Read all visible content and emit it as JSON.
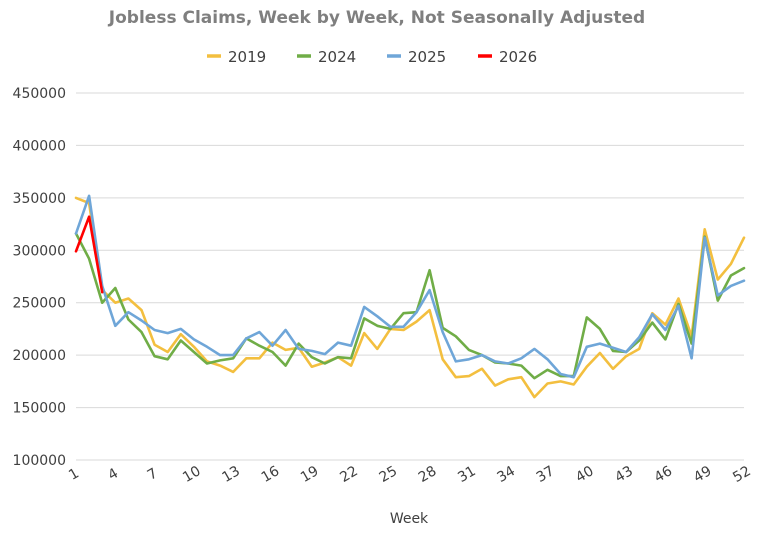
{
  "chart_data": {
    "type": "line",
    "title": "Jobless Claims, Week by Week, Not Seasonally Adjusted",
    "xlabel": "Week",
    "ylabel": "",
    "ylim": [
      100000,
      450000
    ],
    "yticks": [
      100000,
      150000,
      200000,
      250000,
      300000,
      350000,
      400000,
      450000
    ],
    "xlim": [
      1,
      52
    ],
    "xticks": [
      1,
      4,
      7,
      10,
      13,
      16,
      19,
      22,
      25,
      28,
      31,
      34,
      37,
      40,
      43,
      46,
      49,
      52
    ],
    "grid": true,
    "legend_position": "top",
    "series": [
      {
        "name": "2019",
        "color": "#f3bf3f",
        "values": [
          350000,
          345000,
          262000,
          250000,
          254000,
          243000,
          210000,
          203000,
          220000,
          208000,
          194000,
          190000,
          184000,
          197000,
          197000,
          212000,
          205000,
          207000,
          189000,
          193000,
          198000,
          190000,
          221000,
          206000,
          225000,
          224000,
          232000,
          243000,
          196000,
          179000,
          180000,
          187000,
          171000,
          177000,
          179000,
          160000,
          173000,
          175000,
          172000,
          189000,
          202000,
          187000,
          199000,
          206000,
          240000,
          229000,
          254000,
          218000,
          320000,
          272000,
          287000,
          312000
        ]
      },
      {
        "name": "2024",
        "color": "#70ad47",
        "values": [
          316000,
          292000,
          250000,
          264000,
          234000,
          222000,
          199000,
          196000,
          214000,
          203000,
          192000,
          195000,
          197000,
          216000,
          209000,
          203000,
          190000,
          211000,
          198000,
          192000,
          198000,
          197000,
          235000,
          228000,
          225000,
          240000,
          241000,
          281000,
          226000,
          218000,
          205000,
          200000,
          193000,
          192000,
          190000,
          178000,
          186000,
          180000,
          180000,
          236000,
          225000,
          204000,
          203000,
          214000,
          231000,
          215000,
          249000,
          211000,
          313000,
          252000,
          276000,
          283000
        ]
      },
      {
        "name": "2025",
        "color": "#6fa6d8",
        "values": [
          316000,
          352000,
          266000,
          228000,
          241000,
          233000,
          224000,
          221000,
          225000,
          215000,
          208000,
          200000,
          200000,
          216000,
          222000,
          209000,
          224000,
          206000,
          204000,
          201000,
          212000,
          209000,
          246000,
          237000,
          227000,
          227000,
          241000,
          262000,
          222000,
          194000,
          196000,
          200000,
          194000,
          192000,
          197000,
          206000,
          196000,
          182000,
          179000,
          208000,
          211000,
          207000,
          203000,
          217000,
          239000,
          224000,
          247000,
          197000,
          312000,
          257000,
          266000,
          271000
        ]
      },
      {
        "name": "2026",
        "color": "#ff0000",
        "values": [
          299000,
          332000,
          260000
        ]
      }
    ]
  }
}
